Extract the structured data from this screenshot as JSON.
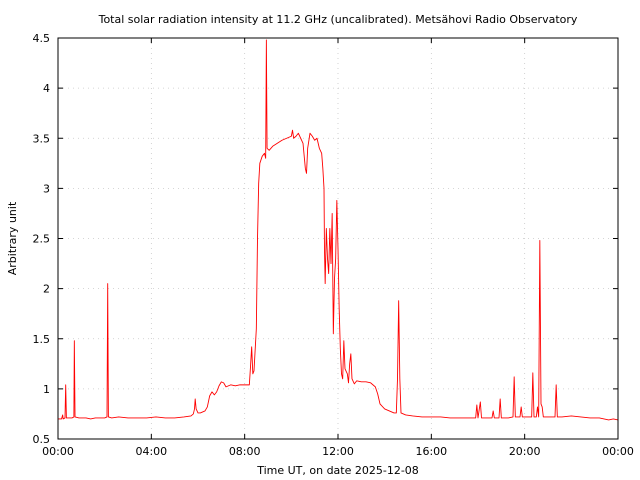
{
  "chart_data": {
    "type": "line",
    "title": "Total solar radiation intensity at 11.2 GHz (uncalibrated). Metsähovi Radio Observatory",
    "xlabel": "Time UT, on date 2025-12-08",
    "ylabel": "Arbitrary unit",
    "xlim": [
      0,
      24
    ],
    "ylim": [
      0.5,
      4.5
    ],
    "x_ticks": [
      {
        "value": 0,
        "label": "00:00"
      },
      {
        "value": 4,
        "label": "04:00"
      },
      {
        "value": 8,
        "label": "08:00"
      },
      {
        "value": 12,
        "label": "12:00"
      },
      {
        "value": 16,
        "label": "16:00"
      },
      {
        "value": 20,
        "label": "20:00"
      },
      {
        "value": 24,
        "label": "00:00"
      }
    ],
    "y_ticks": [
      {
        "value": 0.5,
        "label": "0.5"
      },
      {
        "value": 1,
        "label": "1"
      },
      {
        "value": 1.5,
        "label": "1.5"
      },
      {
        "value": 2,
        "label": "2"
      },
      {
        "value": 2.5,
        "label": "2.5"
      },
      {
        "value": 3,
        "label": "3"
      },
      {
        "value": 3.5,
        "label": "3.5"
      },
      {
        "value": 4,
        "label": "4"
      },
      {
        "value": 4.5,
        "label": "4.5"
      }
    ],
    "grid": true,
    "legend": "none",
    "line_color": "#ff0000",
    "series": [
      {
        "color": "#ff0000",
        "points": [
          [
            0.0,
            0.7
          ],
          [
            0.15,
            0.7
          ],
          [
            0.2,
            0.74
          ],
          [
            0.22,
            0.7
          ],
          [
            0.3,
            0.71
          ],
          [
            0.33,
            1.04
          ],
          [
            0.36,
            0.71
          ],
          [
            0.5,
            0.71
          ],
          [
            0.6,
            0.71
          ],
          [
            0.68,
            0.72
          ],
          [
            0.7,
            1.48
          ],
          [
            0.73,
            0.72
          ],
          [
            0.9,
            0.71
          ],
          [
            1.2,
            0.71
          ],
          [
            1.4,
            0.7
          ],
          [
            1.6,
            0.71
          ],
          [
            1.8,
            0.71
          ],
          [
            2.0,
            0.71
          ],
          [
            2.1,
            0.72
          ],
          [
            2.13,
            2.05
          ],
          [
            2.16,
            0.72
          ],
          [
            2.3,
            0.71
          ],
          [
            2.6,
            0.72
          ],
          [
            3.0,
            0.71
          ],
          [
            3.4,
            0.71
          ],
          [
            3.8,
            0.71
          ],
          [
            4.2,
            0.72
          ],
          [
            4.6,
            0.71
          ],
          [
            5.0,
            0.71
          ],
          [
            5.4,
            0.72
          ],
          [
            5.7,
            0.73
          ],
          [
            5.8,
            0.75
          ],
          [
            5.85,
            0.8
          ],
          [
            5.88,
            0.9
          ],
          [
            5.92,
            0.8
          ],
          [
            6.0,
            0.76
          ],
          [
            6.1,
            0.76
          ],
          [
            6.3,
            0.78
          ],
          [
            6.4,
            0.82
          ],
          [
            6.5,
            0.93
          ],
          [
            6.6,
            0.97
          ],
          [
            6.7,
            0.94
          ],
          [
            6.8,
            0.97
          ],
          [
            6.9,
            1.03
          ],
          [
            7.0,
            1.07
          ],
          [
            7.1,
            1.06
          ],
          [
            7.2,
            1.02
          ],
          [
            7.4,
            1.04
          ],
          [
            7.6,
            1.03
          ],
          [
            7.8,
            1.04
          ],
          [
            8.0,
            1.04
          ],
          [
            8.15,
            1.04
          ],
          [
            8.2,
            1.04
          ],
          [
            8.25,
            1.22
          ],
          [
            8.3,
            1.42
          ],
          [
            8.35,
            1.15
          ],
          [
            8.4,
            1.18
          ],
          [
            8.5,
            1.6
          ],
          [
            8.55,
            2.5
          ],
          [
            8.6,
            3.05
          ],
          [
            8.65,
            3.25
          ],
          [
            8.75,
            3.32
          ],
          [
            8.85,
            3.35
          ],
          [
            8.9,
            3.3
          ],
          [
            8.93,
            4.48
          ],
          [
            8.96,
            3.4
          ],
          [
            9.05,
            3.38
          ],
          [
            9.2,
            3.42
          ],
          [
            9.4,
            3.45
          ],
          [
            9.6,
            3.48
          ],
          [
            9.8,
            3.5
          ],
          [
            10.0,
            3.52
          ],
          [
            10.05,
            3.58
          ],
          [
            10.1,
            3.5
          ],
          [
            10.2,
            3.52
          ],
          [
            10.3,
            3.55
          ],
          [
            10.4,
            3.5
          ],
          [
            10.5,
            3.45
          ],
          [
            10.6,
            3.2
          ],
          [
            10.65,
            3.15
          ],
          [
            10.7,
            3.4
          ],
          [
            10.8,
            3.55
          ],
          [
            10.9,
            3.52
          ],
          [
            11.0,
            3.48
          ],
          [
            11.1,
            3.5
          ],
          [
            11.2,
            3.4
          ],
          [
            11.3,
            3.35
          ],
          [
            11.35,
            3.2
          ],
          [
            11.4,
            3.0
          ],
          [
            11.42,
            2.4
          ],
          [
            11.45,
            2.05
          ],
          [
            11.5,
            2.6
          ],
          [
            11.55,
            2.3
          ],
          [
            11.6,
            2.15
          ],
          [
            11.65,
            2.6
          ],
          [
            11.7,
            2.25
          ],
          [
            11.75,
            2.75
          ],
          [
            11.8,
            1.55
          ],
          [
            11.85,
            2.1
          ],
          [
            11.9,
            2.3
          ],
          [
            11.95,
            2.88
          ],
          [
            12.0,
            2.4
          ],
          [
            12.05,
            1.8
          ],
          [
            12.1,
            1.4
          ],
          [
            12.15,
            1.15
          ],
          [
            12.2,
            1.1
          ],
          [
            12.25,
            1.48
          ],
          [
            12.3,
            1.2
          ],
          [
            12.4,
            1.15
          ],
          [
            12.45,
            1.06
          ],
          [
            12.5,
            1.25
          ],
          [
            12.55,
            1.35
          ],
          [
            12.6,
            1.1
          ],
          [
            12.7,
            1.05
          ],
          [
            12.8,
            1.08
          ],
          [
            13.0,
            1.07
          ],
          [
            13.2,
            1.07
          ],
          [
            13.4,
            1.06
          ],
          [
            13.6,
            1.02
          ],
          [
            13.7,
            0.95
          ],
          [
            13.8,
            0.85
          ],
          [
            14.0,
            0.8
          ],
          [
            14.2,
            0.78
          ],
          [
            14.4,
            0.76
          ],
          [
            14.5,
            0.76
          ],
          [
            14.55,
            1.1
          ],
          [
            14.6,
            1.88
          ],
          [
            14.65,
            1.1
          ],
          [
            14.7,
            0.76
          ],
          [
            14.9,
            0.74
          ],
          [
            15.2,
            0.73
          ],
          [
            15.6,
            0.72
          ],
          [
            16.0,
            0.72
          ],
          [
            16.4,
            0.72
          ],
          [
            16.8,
            0.71
          ],
          [
            17.2,
            0.71
          ],
          [
            17.6,
            0.71
          ],
          [
            17.9,
            0.71
          ],
          [
            17.95,
            0.84
          ],
          [
            18.0,
            0.71
          ],
          [
            18.1,
            0.87
          ],
          [
            18.15,
            0.71
          ],
          [
            18.4,
            0.71
          ],
          [
            18.6,
            0.71
          ],
          [
            18.65,
            0.78
          ],
          [
            18.7,
            0.71
          ],
          [
            18.9,
            0.71
          ],
          [
            18.95,
            0.9
          ],
          [
            19.0,
            0.71
          ],
          [
            19.3,
            0.71
          ],
          [
            19.5,
            0.72
          ],
          [
            19.55,
            1.12
          ],
          [
            19.6,
            0.72
          ],
          [
            19.8,
            0.72
          ],
          [
            19.85,
            0.82
          ],
          [
            19.9,
            0.72
          ],
          [
            20.2,
            0.72
          ],
          [
            20.3,
            0.72
          ],
          [
            20.35,
            1.16
          ],
          [
            20.4,
            0.72
          ],
          [
            20.5,
            0.72
          ],
          [
            20.55,
            0.82
          ],
          [
            20.6,
            0.72
          ],
          [
            20.65,
            2.48
          ],
          [
            20.7,
            0.85
          ],
          [
            20.75,
            0.82
          ],
          [
            20.8,
            0.72
          ],
          [
            21.0,
            0.72
          ],
          [
            21.3,
            0.72
          ],
          [
            21.35,
            1.04
          ],
          [
            21.4,
            0.72
          ],
          [
            21.6,
            0.72
          ],
          [
            22.0,
            0.73
          ],
          [
            22.4,
            0.72
          ],
          [
            22.8,
            0.71
          ],
          [
            23.2,
            0.71
          ],
          [
            23.4,
            0.7
          ],
          [
            23.6,
            0.69
          ],
          [
            23.8,
            0.7
          ],
          [
            24.0,
            0.69
          ]
        ]
      }
    ]
  }
}
